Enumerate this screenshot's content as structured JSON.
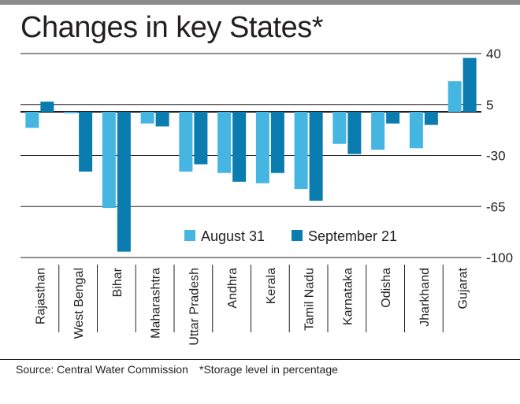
{
  "title": "Changes in key States*",
  "source": "Source: Central Water Commission",
  "note": "*Storage level in percentage",
  "colors": {
    "august": "#45b5e2",
    "september": "#0a7cb0",
    "grid": "#231f20"
  },
  "chart_data": {
    "type": "bar",
    "title": "Changes in key States*",
    "categories": [
      "Rajasthan",
      "West Bengal",
      "Bihar",
      "Maharashtra",
      "Uttar Pradesh",
      "Andhra",
      "Kerala",
      "Tamil Nadu",
      "Karnataka",
      "Odisha",
      "Jharkhand",
      "Gujarat"
    ],
    "series": [
      {
        "name": "August 31",
        "values": [
          -11,
          -1,
          -66,
          -8,
          -41,
          -42,
          -49,
          -53,
          -22,
          -26,
          -25,
          21
        ]
      },
      {
        "name": "September 21",
        "values": [
          7,
          -41,
          -96,
          -10,
          -36,
          -48,
          -42,
          -61,
          -29,
          -8,
          -9,
          37
        ]
      }
    ],
    "yticks": [
      "40",
      "5",
      "-30",
      "-65",
      "-100"
    ],
    "ylim": [
      -100,
      40
    ],
    "legend": [
      "August 31",
      "September 21"
    ],
    "legend_position": "bottom-center",
    "xlabel": "",
    "ylabel": ""
  }
}
